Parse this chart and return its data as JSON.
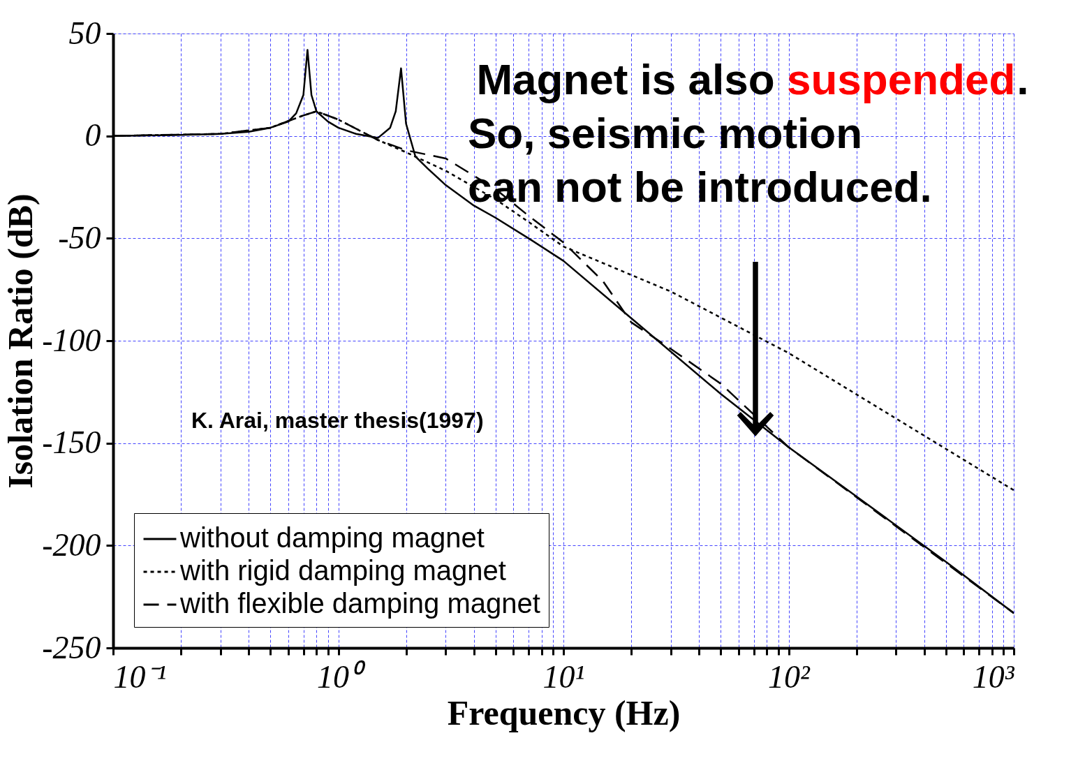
{
  "chart_data": {
    "type": "line",
    "xlabel": "Frequency (Hz)",
    "ylabel": "Isolation Ratio (dB)",
    "log": "x",
    "grid": true,
    "legend": "bottom left",
    "xlim": [
      0.1,
      1000
    ],
    "ylim": [
      -250,
      50
    ],
    "xticks": [
      {
        "value": 0.1,
        "label": "10⁻¹"
      },
      {
        "value": 0.2,
        "label": null
      },
      {
        "value": 0.3,
        "label": null
      },
      {
        "value": 0.4,
        "label": null
      },
      {
        "value": 0.5,
        "label": null
      },
      {
        "value": 0.6,
        "label": null
      },
      {
        "value": 0.7,
        "label": null
      },
      {
        "value": 0.8,
        "label": null
      },
      {
        "value": 0.9,
        "label": null
      },
      {
        "value": 1,
        "label": "10⁰"
      },
      {
        "value": 2,
        "label": null
      },
      {
        "value": 3,
        "label": null
      },
      {
        "value": 4,
        "label": null
      },
      {
        "value": 5,
        "label": null
      },
      {
        "value": 6,
        "label": null
      },
      {
        "value": 7,
        "label": null
      },
      {
        "value": 8,
        "label": null
      },
      {
        "value": 9,
        "label": null
      },
      {
        "value": 10,
        "label": "10¹"
      },
      {
        "value": 20,
        "label": null
      },
      {
        "value": 30,
        "label": null
      },
      {
        "value": 40,
        "label": null
      },
      {
        "value": 50,
        "label": null
      },
      {
        "value": 60,
        "label": null
      },
      {
        "value": 70,
        "label": null
      },
      {
        "value": 80,
        "label": null
      },
      {
        "value": 90,
        "label": null
      },
      {
        "value": 100,
        "label": "10²"
      },
      {
        "value": 200,
        "label": null
      },
      {
        "value": 300,
        "label": null
      },
      {
        "value": 400,
        "label": null
      },
      {
        "value": 500,
        "label": null
      },
      {
        "value": 600,
        "label": null
      },
      {
        "value": 700,
        "label": null
      },
      {
        "value": 800,
        "label": null
      },
      {
        "value": 900,
        "label": null
      },
      {
        "value": 1000,
        "label": "10³"
      }
    ],
    "yticks": [
      50,
      0,
      -50,
      -100,
      -150,
      -200,
      -250
    ],
    "series": [
      {
        "name": "without damping magnet",
        "color": "#000000",
        "line_style": "solid",
        "x": [
          0.1,
          0.2,
          0.3,
          0.4,
          0.5,
          0.6,
          0.65,
          0.7,
          0.73,
          0.76,
          0.8,
          0.9,
          1,
          1.2,
          1.5,
          1.7,
          1.8,
          1.9,
          2,
          2.2,
          2.5,
          3,
          4,
          5,
          7,
          10,
          20,
          50,
          100,
          200,
          500,
          1000
        ],
        "values": [
          0,
          0.5,
          1,
          2,
          4,
          7,
          11,
          20,
          42,
          20,
          12,
          7,
          4,
          1,
          -1,
          4,
          12,
          33,
          6,
          -10,
          -16,
          -24,
          -34,
          -40,
          -50,
          -61,
          -89,
          -126,
          -152,
          -176,
          -208,
          -233
        ]
      },
      {
        "name": "with rigid damping magnet",
        "color": "#000000",
        "line_style": "dotted",
        "x": [
          0.1,
          0.3,
          0.5,
          0.7,
          0.8,
          1,
          1.5,
          2,
          3,
          5,
          7,
          10,
          30,
          100,
          300,
          1000
        ],
        "values": [
          0,
          1,
          4,
          10,
          12,
          8,
          -2,
          -8,
          -17,
          -31,
          -42,
          -54,
          -76,
          -106,
          -138,
          -173
        ]
      },
      {
        "name": "with flexible damping magnet",
        "color": "#000000",
        "line_style": "dashed",
        "x": [
          0.1,
          0.3,
          0.5,
          0.7,
          0.8,
          1,
          1.5,
          2,
          3,
          5,
          7,
          10,
          15,
          20,
          30,
          50,
          70,
          100,
          1000
        ],
        "values": [
          0,
          1,
          4,
          10,
          12,
          8,
          -2,
          -7,
          -11,
          -26,
          -39,
          -52,
          -71,
          -91,
          -104,
          -121,
          -136,
          -152,
          -233
        ]
      }
    ],
    "annotations": [
      "Magnet is also ",
      "suspended",
      ".",
      "So, seismic motion",
      "can not be introduced.",
      "K. Arai, master thesis(1997)"
    ]
  }
}
